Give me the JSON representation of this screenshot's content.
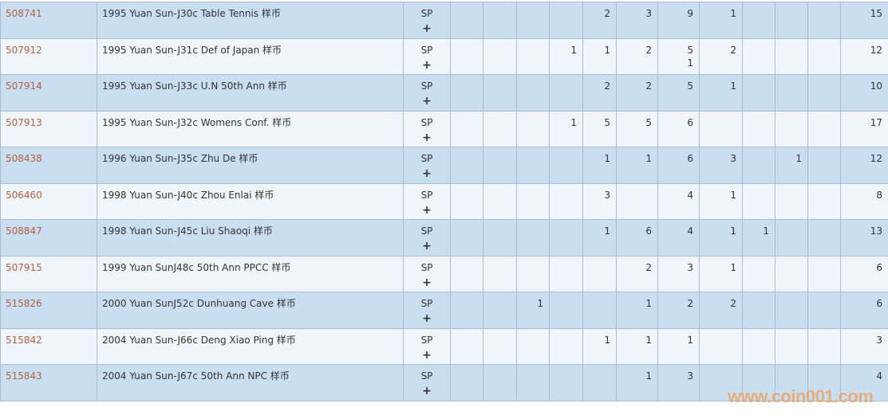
{
  "rows": [
    {
      "id": "508741",
      "desc": "1995 Yuan Sun-J30c Table Tennis 样币",
      "grade": "SP",
      "cols": [
        "",
        "",
        "",
        "",
        "2",
        "3",
        "9",
        "1",
        "",
        "",
        ""
      ],
      "total": "15"
    },
    {
      "id": "507912",
      "desc": "1995 Yuan Sun-J31c Def of Japan 样币",
      "grade": "SP",
      "cols": [
        "",
        "",
        "",
        "1",
        "1",
        "2",
        "5\n1",
        "2",
        "",
        "",
        ""
      ],
      "total": "12"
    },
    {
      "id": "507914",
      "desc": "1995 Yuan Sun-J33c U.N 50th Ann 样币",
      "grade": "SP",
      "cols": [
        "",
        "",
        "",
        "",
        "2",
        "2",
        "5",
        "1",
        "",
        "",
        ""
      ],
      "total": "10"
    },
    {
      "id": "507913",
      "desc": "1995 Yuan Sun-J32c Womens Conf. 样币",
      "grade": "SP",
      "cols": [
        "",
        "",
        "",
        "1",
        "5",
        "5",
        "6",
        "",
        "",
        "",
        ""
      ],
      "total": "17"
    },
    {
      "id": "508438",
      "desc": "1996 Yuan Sun-J35c Zhu De 样币",
      "grade": "SP",
      "cols": [
        "",
        "",
        "",
        "",
        "1",
        "1",
        "6",
        "3",
        "",
        "1",
        ""
      ],
      "total": "12"
    },
    {
      "id": "506460",
      "desc": "1998 Yuan Sun-J40c Zhou Enlai 样币",
      "grade": "SP",
      "cols": [
        "",
        "",
        "",
        "",
        "3",
        "",
        "4",
        "1",
        "",
        "",
        ""
      ],
      "total": "8"
    },
    {
      "id": "508847",
      "desc": "1998 Yuan Sun-J45c Liu Shaoqi 样币",
      "grade": "SP",
      "cols": [
        "",
        "",
        "",
        "",
        "1",
        "6",
        "4",
        "1",
        "1",
        "",
        ""
      ],
      "total": "13"
    },
    {
      "id": "507915",
      "desc": "1999 Yuan SunJ48c 50th Ann PPCC 样币",
      "grade": "SP",
      "cols": [
        "",
        "",
        "",
        "",
        "",
        "2",
        "3",
        "1",
        "",
        "",
        ""
      ],
      "total": "6"
    },
    {
      "id": "515826",
      "desc": "2000 Yuan SunJ52c Dunhuang Cave 样币",
      "grade": "SP",
      "cols": [
        "",
        "",
        "1",
        "",
        "",
        "1",
        "2",
        "2",
        "",
        "",
        ""
      ],
      "total": "6"
    },
    {
      "id": "515842",
      "desc": "2004 Yuan Sun-J66c Deng Xiao Ping 样币",
      "grade": "SP",
      "cols": [
        "",
        "",
        "",
        "",
        "1",
        "1",
        "1",
        "",
        "",
        "",
        ""
      ],
      "total": "3"
    },
    {
      "id": "515843",
      "desc": "2004 Yuan Sun-J67c 50th Ann NPC 样币",
      "grade": "SP",
      "cols": [
        "",
        "",
        "",
        "",
        "",
        "1",
        "3",
        "",
        "",
        "",
        ""
      ],
      "total": "4"
    }
  ],
  "expand_symbol": "+",
  "watermark": "www.coin001.com",
  "colors": {
    "row_odd": "#c9def0",
    "row_even": "#f0f5fa",
    "link": "#b5603f",
    "border": "#a9bccc"
  }
}
